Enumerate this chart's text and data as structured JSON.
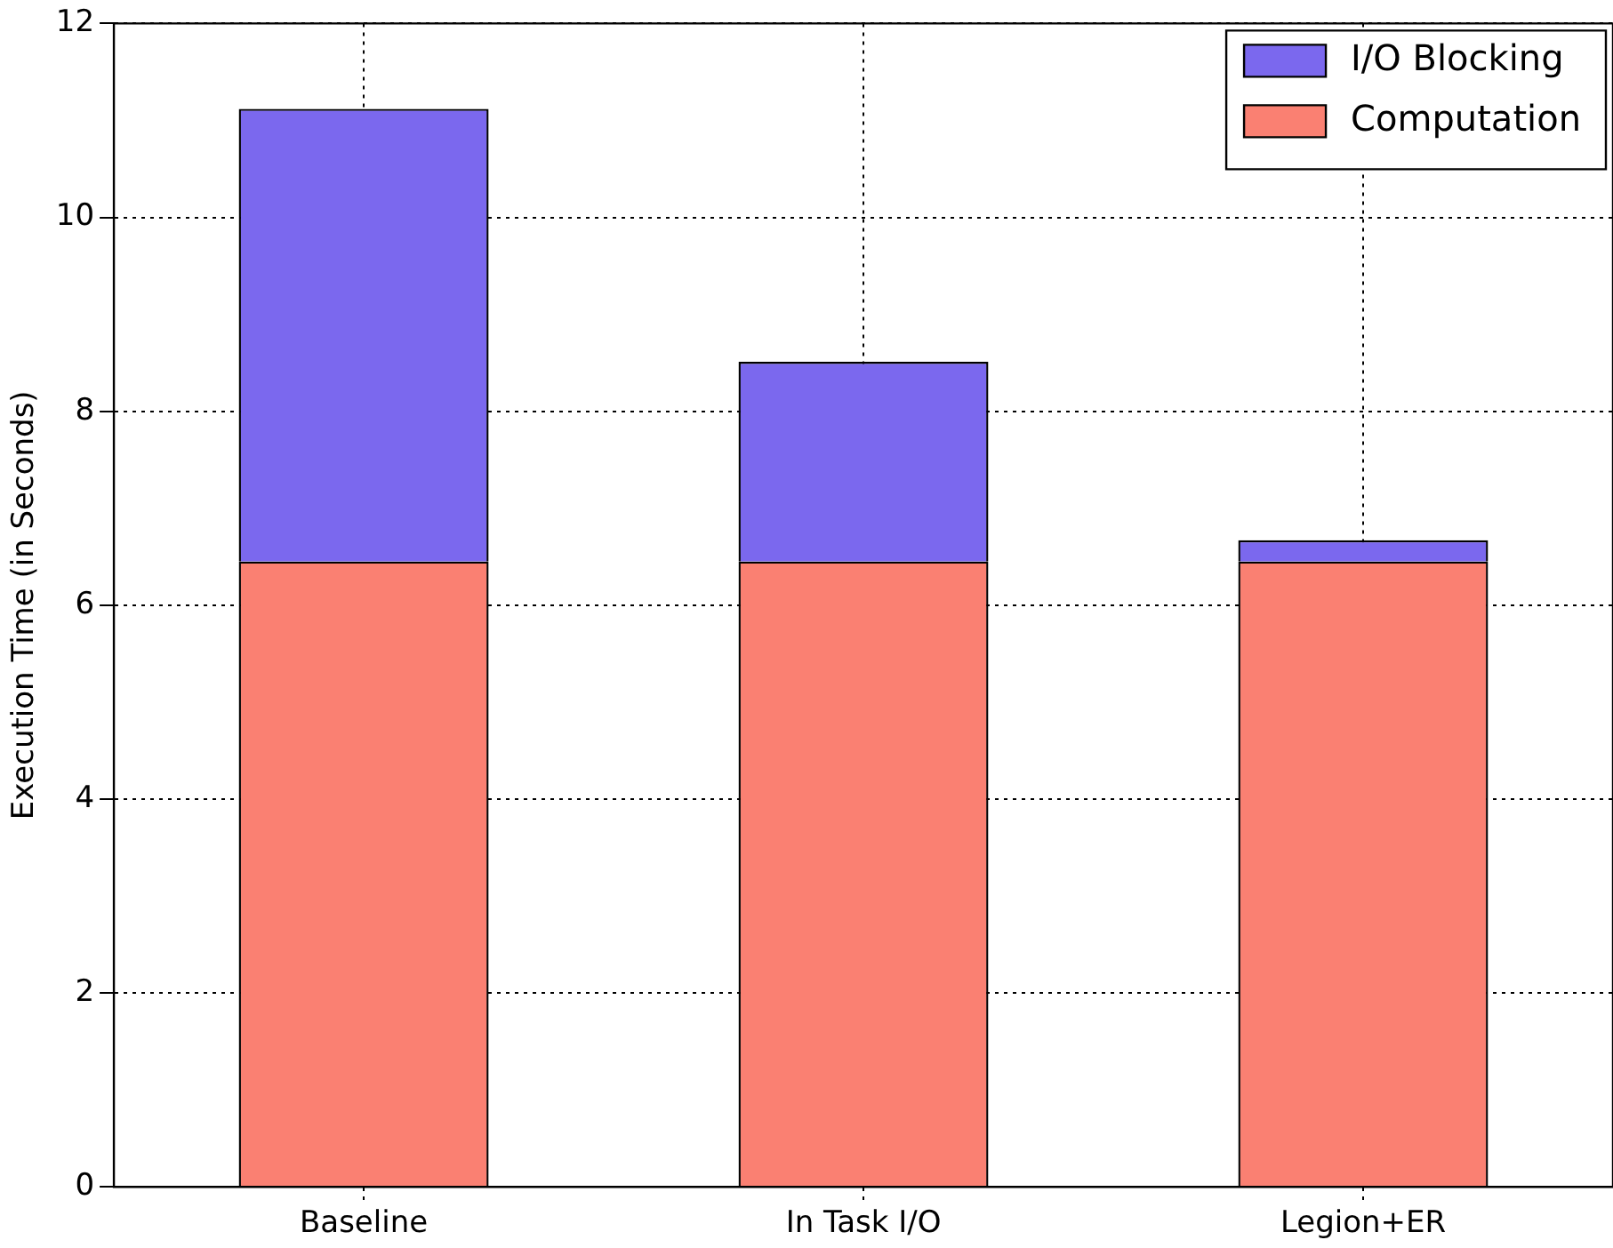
{
  "chart_data": {
    "type": "bar",
    "ylabel": "Execution Time (in Seconds)",
    "categories": [
      "Baseline",
      "In Task I/O",
      "Legion+ER"
    ],
    "stacked": true,
    "series": [
      {
        "name": "Computation",
        "color": "#fa8072",
        "values": [
          6.45,
          6.45,
          6.45
        ]
      },
      {
        "name": "I/O Blocking",
        "color": "#7b68ee",
        "values": [
          4.67,
          2.06,
          0.22
        ]
      }
    ],
    "ylim": [
      0,
      12
    ],
    "yticks": [
      0,
      2,
      4,
      6,
      8,
      10,
      12
    ],
    "grid": true,
    "legend": "top right"
  }
}
